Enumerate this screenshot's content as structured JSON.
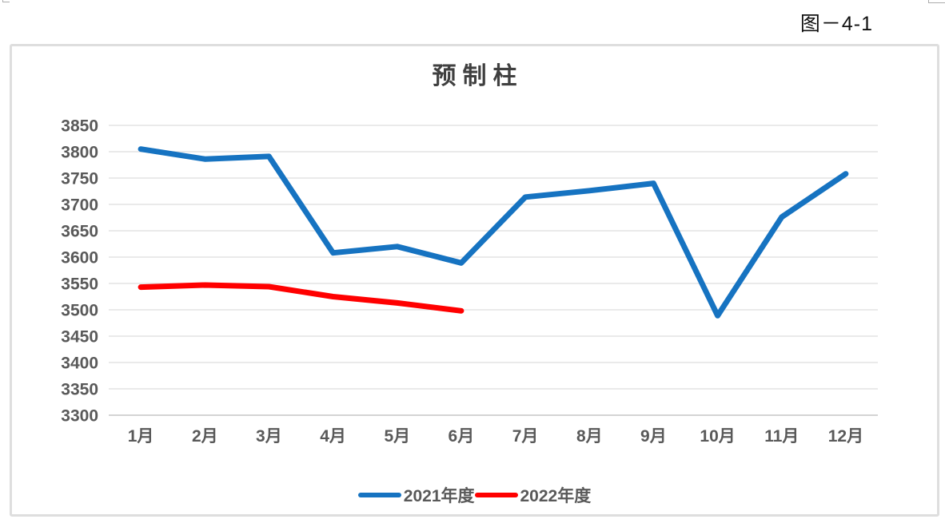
{
  "page": {
    "figure_label": "图－4-1"
  },
  "chart": {
    "title": "预制柱",
    "colors": {
      "series_2021": "#1673C1",
      "series_2022": "#FF0000",
      "title_text": "#404040",
      "tick_text": "#595959",
      "gridline": "#e4e4e4",
      "axis_line": "#c6c6c6",
      "panel_border": "#dedede"
    }
  },
  "chart_data": {
    "type": "line",
    "title": "预制柱",
    "categories": [
      "1月",
      "2月",
      "3月",
      "4月",
      "5月",
      "6月",
      "7月",
      "8月",
      "9月",
      "10月",
      "11月",
      "12月"
    ],
    "series": [
      {
        "name": "2021年度",
        "color": "#1673C1",
        "values": [
          3805,
          3786,
          3791,
          3608,
          3620,
          3589,
          3714,
          3726,
          3740,
          3489,
          3676,
          3758
        ]
      },
      {
        "name": "2022年度",
        "color": "#FF0000",
        "values": [
          3543,
          3547,
          3544,
          3525,
          3513,
          3498
        ]
      }
    ],
    "xlabel": "",
    "ylabel": "",
    "ylim": [
      3300,
      3850
    ],
    "ytick_step": 50,
    "ytick_labels": [
      "3850",
      "3800",
      "3750",
      "3700",
      "3650",
      "3600",
      "3550",
      "3500",
      "3450",
      "3400",
      "3350",
      "3300"
    ],
    "grid": true,
    "legend_position": "bottom",
    "legend_entries": [
      "2021年度",
      "2022年度"
    ]
  }
}
